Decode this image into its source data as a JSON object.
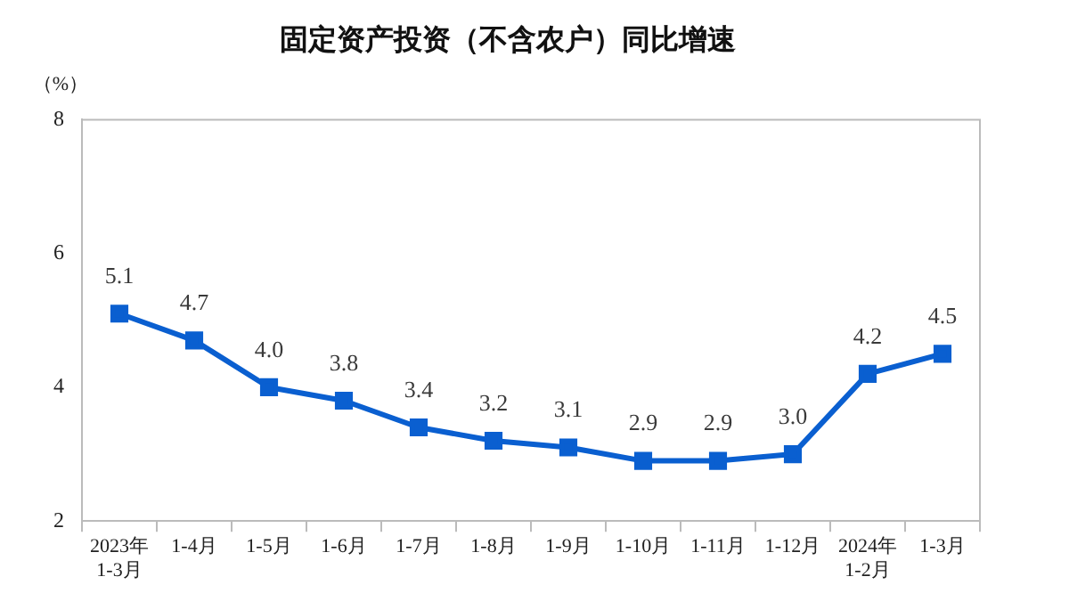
{
  "chart_data": {
    "type": "line",
    "title": "固定资产投资（不含农户）同比增速",
    "ylabel": "（%）",
    "categories": [
      "2023年\n1-3月",
      "1-4月",
      "1-5月",
      "1-6月",
      "1-7月",
      "1-8月",
      "1-9月",
      "1-10月",
      "1-11月",
      "1-12月",
      "2024年\n1-2月",
      "1-3月"
    ],
    "series": [
      {
        "color": "#0a5fd0",
        "values": [
          5.1,
          4.7,
          4.0,
          3.8,
          3.4,
          3.2,
          3.1,
          2.9,
          2.9,
          3.0,
          4.2,
          4.5
        ],
        "value_labels": [
          "5.1",
          "4.7",
          "4.0",
          "3.8",
          "3.4",
          "3.2",
          "3.1",
          "2.9",
          "2.9",
          "3.0",
          "4.2",
          "4.5"
        ]
      }
    ],
    "ylim": [
      2,
      8
    ],
    "yticks": [
      2,
      4,
      6,
      8
    ],
    "grid": false,
    "legend": false,
    "marker": "square",
    "line_style": "solid"
  }
}
